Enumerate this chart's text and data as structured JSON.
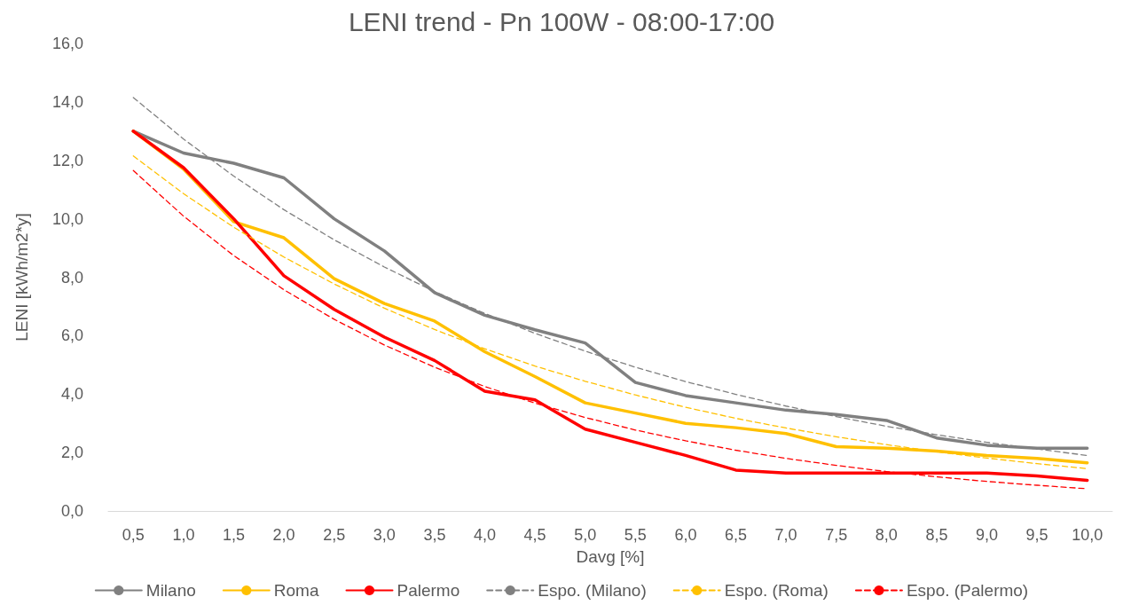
{
  "chart_data": {
    "type": "line",
    "title": "LENI trend - Pn 100W - 08:00-17:00",
    "xlabel": "Davg [%]",
    "ylabel": "LENI [kWh/m2*y]",
    "categories": [
      "0,5",
      "1,0",
      "1,5",
      "2,0",
      "2,5",
      "3,0",
      "3,5",
      "4,0",
      "4,5",
      "5,0",
      "5,5",
      "6,0",
      "6,5",
      "7,0",
      "7,5",
      "8,0",
      "8,5",
      "9,0",
      "9,5",
      "10,0"
    ],
    "series": [
      {
        "name": "Milano",
        "color": "#808080",
        "line_style": "solid",
        "values": [
          13.0,
          12.25,
          11.9,
          11.4,
          10.0,
          8.9,
          7.47,
          6.7,
          6.2,
          5.75,
          4.4,
          3.95,
          3.7,
          3.45,
          3.3,
          3.1,
          2.5,
          2.25,
          2.15,
          2.15
        ]
      },
      {
        "name": "Roma",
        "color": "#ffc000",
        "line_style": "solid",
        "values": [
          13.0,
          11.7,
          9.9,
          9.35,
          7.95,
          7.1,
          6.5,
          5.45,
          4.6,
          3.7,
          3.35,
          3.0,
          2.85,
          2.65,
          2.2,
          2.15,
          2.05,
          1.9,
          1.8,
          1.65
        ]
      },
      {
        "name": "Palermo",
        "color": "#ff0000",
        "line_style": "solid",
        "values": [
          13.0,
          11.75,
          10.0,
          8.05,
          6.9,
          5.95,
          5.15,
          4.1,
          3.8,
          2.8,
          2.35,
          1.9,
          1.4,
          1.3,
          1.3,
          1.3,
          1.3,
          1.3,
          1.2,
          1.05
        ]
      },
      {
        "name": "Espo. (Milano)",
        "color": "#808080",
        "line_style": "dashed",
        "values": [
          14.15,
          12.73,
          11.46,
          10.31,
          9.28,
          8.35,
          7.51,
          6.76,
          6.08,
          5.47,
          4.92,
          4.43,
          3.99,
          3.59,
          3.23,
          2.9,
          2.61,
          2.35,
          2.12,
          1.9
        ]
      },
      {
        "name": "Espo. (Roma)",
        "color": "#ffc000",
        "line_style": "dashed",
        "values": [
          12.15,
          10.86,
          9.71,
          8.69,
          7.77,
          6.94,
          6.21,
          5.55,
          4.96,
          4.44,
          3.97,
          3.55,
          3.17,
          2.84,
          2.54,
          2.27,
          2.03,
          1.81,
          1.62,
          1.45
        ]
      },
      {
        "name": "Espo. (Palermo)",
        "color": "#ff0000",
        "line_style": "dashed",
        "values": [
          11.65,
          10.09,
          8.74,
          7.57,
          6.56,
          5.68,
          4.92,
          4.26,
          3.69,
          3.2,
          2.77,
          2.4,
          2.08,
          1.8,
          1.56,
          1.35,
          1.17,
          1.01,
          0.88,
          0.76
        ]
      }
    ],
    "ylim": [
      0,
      16
    ],
    "yticks": [
      {
        "value": 0,
        "label": "0,0"
      },
      {
        "value": 2,
        "label": "2,0"
      },
      {
        "value": 4,
        "label": "4,0"
      },
      {
        "value": 6,
        "label": "6,0"
      },
      {
        "value": 8,
        "label": "8,0"
      },
      {
        "value": 10,
        "label": "10,0"
      },
      {
        "value": 12,
        "label": "12,0"
      },
      {
        "value": 14,
        "label": "14,0"
      },
      {
        "value": 16,
        "label": "16,0"
      }
    ],
    "grid": false,
    "legend": "bottom",
    "marker": "none"
  }
}
